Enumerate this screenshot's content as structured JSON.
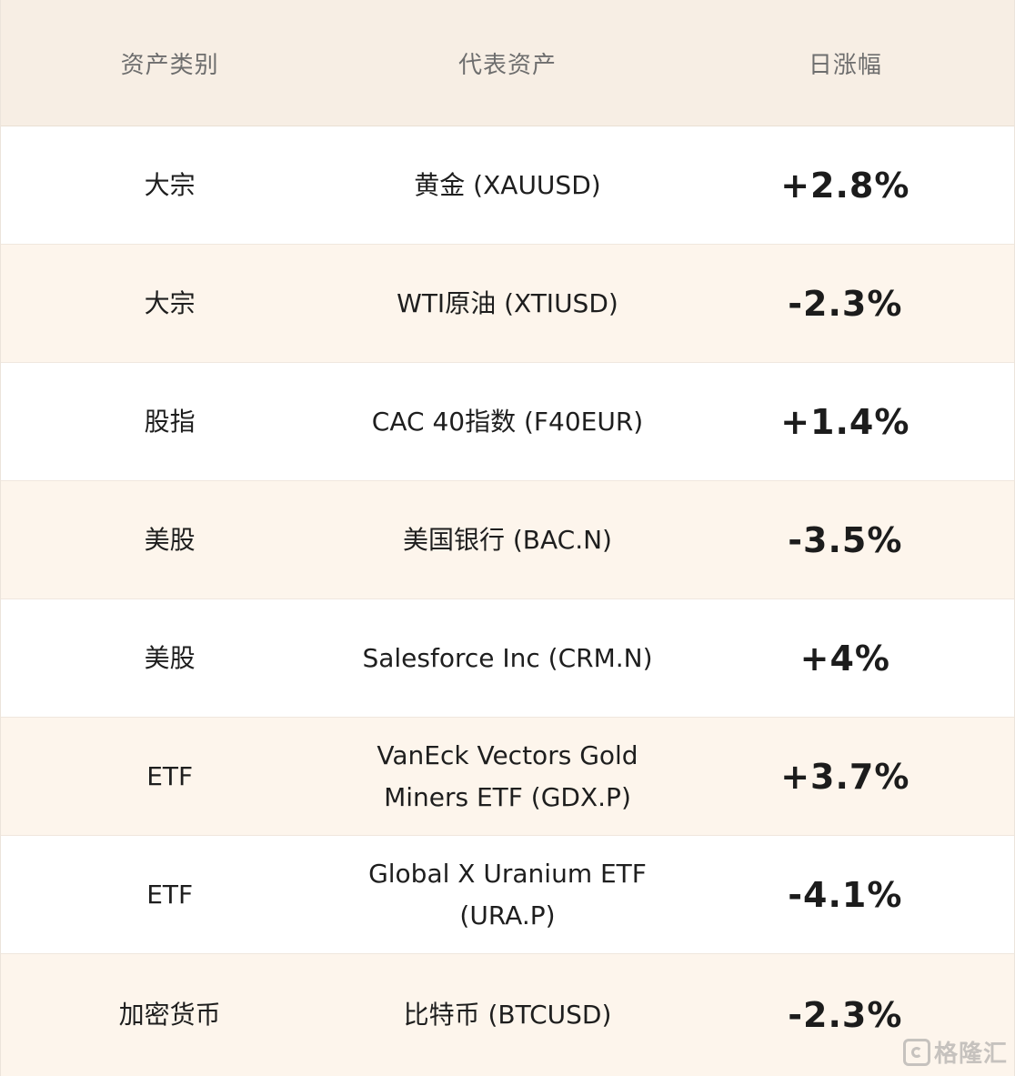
{
  "header": {
    "col1": "资产类别",
    "col2": "代表资产",
    "col3": "日涨幅"
  },
  "rows": [
    {
      "category": "大宗",
      "asset": "黄金 (XAUUSD)",
      "change": "+2.8%"
    },
    {
      "category": "大宗",
      "asset": "WTI原油 (XTIUSD)",
      "change": "-2.3%"
    },
    {
      "category": "股指",
      "asset": "CAC 40指数 (F40EUR)",
      "change": "+1.4%"
    },
    {
      "category": "美股",
      "asset": "美国银行 (BAC.N)",
      "change": "-3.5%"
    },
    {
      "category": "美股",
      "asset": "Salesforce Inc (CRM.N)",
      "change": "+4%"
    },
    {
      "category": "ETF",
      "asset": "VanEck Vectors Gold Miners ETF (GDX.P)",
      "change": "+3.7%"
    },
    {
      "category": "ETF",
      "asset": "Global X Uranium ETF (URA.P)",
      "change": "-4.1%"
    },
    {
      "category": "加密货币",
      "asset": "比特币 (BTCUSD)",
      "change": "-2.3%"
    }
  ],
  "watermark": {
    "icon": "gelonghui-logo-icon",
    "text": "格隆汇"
  }
}
